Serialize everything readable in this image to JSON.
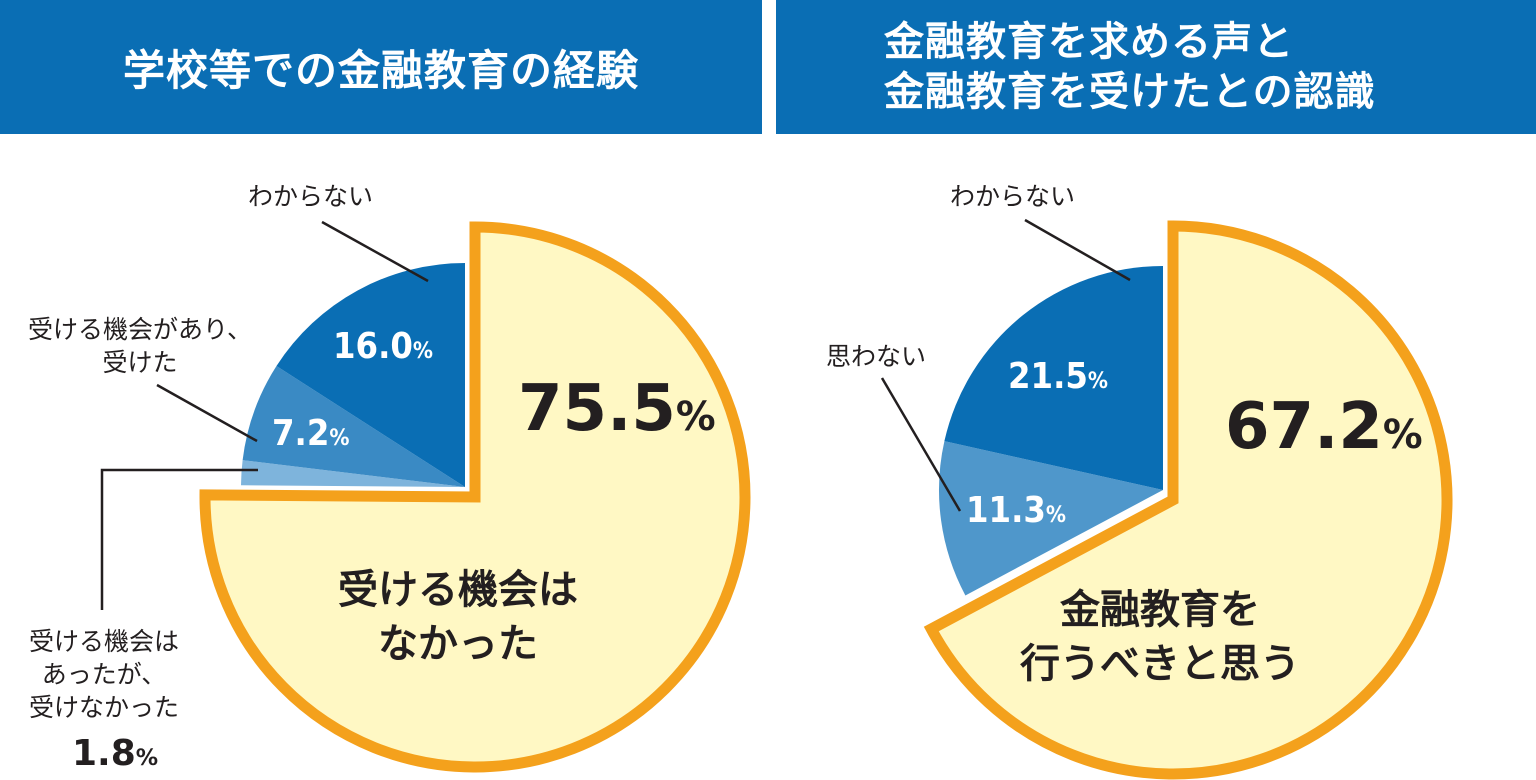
{
  "left": {
    "title": "学校等での金融教育の経験"
  },
  "right": {
    "title_line1": "金融教育を求める声と",
    "title_line2": "金融教育を受けたとの認識"
  },
  "colors": {
    "header_bg": "#0a6eb4",
    "dark_blue": "#0a6eb4",
    "mid_blue": "#3a8ac4",
    "light_blue": "#7eb4dc",
    "right_mid_blue": "#4f97cb",
    "yellow_fill": "#fff8c4",
    "orange_stroke": "#f4a11c"
  },
  "chart_data": [
    {
      "type": "pie",
      "title": "学校等での金融教育の経験",
      "slices": [
        {
          "label": "受ける機会はなかった",
          "value": 75.5,
          "display": "75.5",
          "label_lines": [
            "受ける機会は",
            "なかった"
          ],
          "highlight": true
        },
        {
          "label": "受ける機会はあったが、受けなかった",
          "value": 1.8,
          "display": "1.8",
          "label_lines": [
            "受ける機会は",
            "あったが、",
            "受けなかった"
          ]
        },
        {
          "label": "受ける機会があり、受けた",
          "value": 7.2,
          "display": "7.2",
          "label_lines": [
            "受ける機会があり、",
            "受けた"
          ]
        },
        {
          "label": "わからない",
          "value": 16.0,
          "display": "16.0",
          "label_lines": [
            "わからない"
          ]
        }
      ],
      "unit": "%",
      "start_angle": "12 o'clock, highlighted slice clockwise",
      "exploded_slice": "受ける機会はなかった"
    },
    {
      "type": "pie",
      "title": "金融教育を求める声と金融教育を受けたとの認識",
      "slices": [
        {
          "label": "金融教育を行うべきと思う",
          "value": 67.2,
          "display": "67.2",
          "label_lines": [
            "金融教育を",
            "行うべきと思う"
          ],
          "highlight": true
        },
        {
          "label": "思わない",
          "value": 11.3,
          "display": "11.3",
          "label_lines": [
            "思わない"
          ]
        },
        {
          "label": "わからない",
          "value": 21.5,
          "display": "21.5",
          "label_lines": [
            "わからない"
          ]
        }
      ],
      "unit": "%",
      "start_angle": "12 o'clock, highlighted slice clockwise",
      "exploded_slice": "金融教育を行うべきと思う"
    }
  ],
  "pct_sign": "%"
}
